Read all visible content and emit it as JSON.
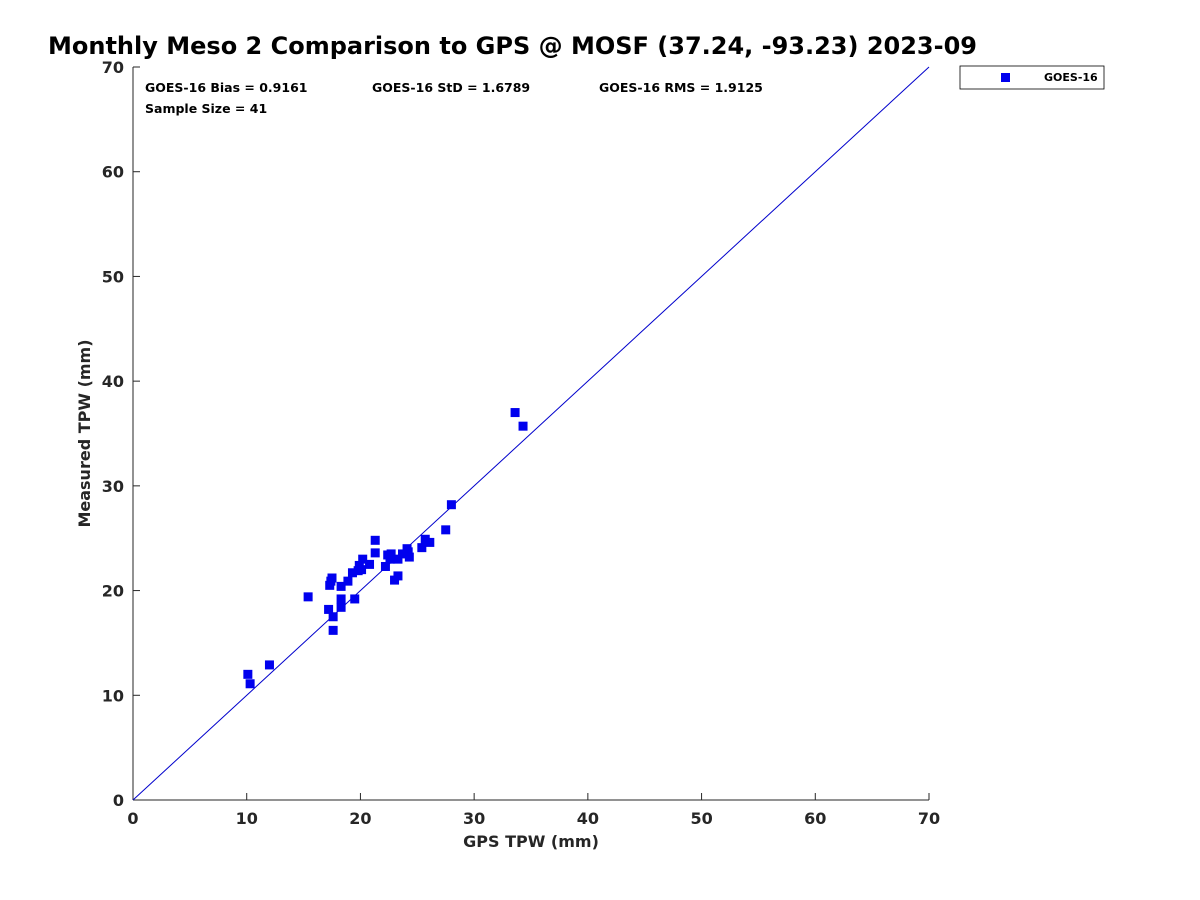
{
  "chart_data": {
    "type": "scatter",
    "title": "Monthly Meso 2 Comparison to GPS @ MOSF (37.24, -93.23) 2023-09",
    "xlabel": "GPS TPW (mm)",
    "ylabel": "Measured TPW (mm)",
    "xlim": [
      0,
      70
    ],
    "ylim": [
      0,
      70
    ],
    "xticks": [
      "0",
      "10",
      "20",
      "30",
      "40",
      "50",
      "60",
      "70"
    ],
    "yticks": [
      "0",
      "10",
      "20",
      "30",
      "40",
      "50",
      "60",
      "70"
    ],
    "grid": false,
    "legend_position": "outside-top-right",
    "reference_line": {
      "x": [
        0,
        70
      ],
      "y": [
        0,
        70
      ],
      "color": "#0000cc"
    },
    "stats": {
      "bias": "GOES-16 Bias = 0.9161",
      "std": "GOES-16 StD = 1.6789",
      "rms": "GOES-16 RMS = 1.9125",
      "sample_size": "Sample Size = 41"
    },
    "series": [
      {
        "name": "GOES-16",
        "color": "#0000ee",
        "marker": "square",
        "points": [
          [
            10.1,
            12.0
          ],
          [
            10.3,
            11.1
          ],
          [
            12.0,
            12.9
          ],
          [
            15.4,
            19.4
          ],
          [
            17.2,
            18.2
          ],
          [
            17.3,
            20.5
          ],
          [
            17.4,
            20.9
          ],
          [
            17.5,
            21.2
          ],
          [
            17.6,
            17.5
          ],
          [
            17.6,
            16.2
          ],
          [
            18.3,
            20.4
          ],
          [
            18.3,
            19.2
          ],
          [
            18.3,
            18.4
          ],
          [
            18.9,
            20.9
          ],
          [
            19.3,
            21.7
          ],
          [
            19.5,
            19.2
          ],
          [
            19.8,
            21.9
          ],
          [
            19.9,
            22.4
          ],
          [
            20.1,
            22.0
          ],
          [
            20.2,
            23.0
          ],
          [
            20.8,
            22.5
          ],
          [
            21.3,
            23.6
          ],
          [
            21.3,
            24.8
          ],
          [
            22.2,
            22.3
          ],
          [
            22.4,
            23.4
          ],
          [
            22.7,
            23.5
          ],
          [
            23.0,
            21.0
          ],
          [
            23.3,
            21.4
          ],
          [
            23.3,
            23.0
          ],
          [
            23.7,
            23.5
          ],
          [
            24.1,
            24.0
          ],
          [
            24.3,
            23.2
          ],
          [
            25.4,
            24.1
          ],
          [
            25.7,
            24.9
          ],
          [
            26.1,
            24.6
          ],
          [
            27.5,
            25.8
          ],
          [
            28.0,
            28.2
          ],
          [
            33.6,
            37.0
          ],
          [
            34.3,
            35.7
          ],
          [
            22.6,
            23.0
          ],
          [
            24.2,
            23.7
          ]
        ]
      }
    ]
  }
}
